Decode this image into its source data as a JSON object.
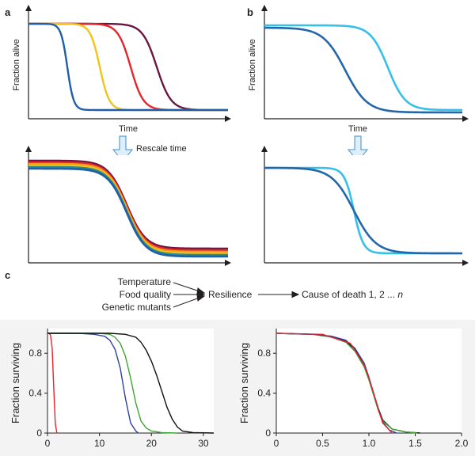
{
  "panels": {
    "a": {
      "letter": "a",
      "ylabel": "Fraction alive",
      "xlabel": "Time",
      "arrow_label": "Rescale time"
    },
    "b": {
      "letter": "b",
      "ylabel": "Fraction alive",
      "xlabel": "Time"
    },
    "c": {
      "letter": "c"
    }
  },
  "flow": {
    "inputs": [
      "Temperature",
      "Food quality",
      "Genetic mutants"
    ],
    "middle": "Resilience",
    "output_prefix": "Cause of death 1, 2 ... ",
    "output_var": "n"
  },
  "colors": {
    "darkblue": "#1f5ea8",
    "yellow": "#f2c318",
    "red": "#e3262d",
    "maroon": "#6b1541",
    "lightblue": "#35c0ea",
    "midblue": "#2466ab",
    "teal": "#2a8a8c",
    "orange": "#f39a1e",
    "arrow_fill": "#dfeefa",
    "arrow_stroke": "#3b8fd0"
  },
  "chart_data": [
    {
      "type": "line",
      "title": "",
      "xlabel": "",
      "ylabel": "Fraction surviving",
      "xlim": [
        0,
        32
      ],
      "ylim": [
        0,
        1.0
      ],
      "xticks": [
        0,
        10,
        20,
        30
      ],
      "yticks": [
        0,
        0.4,
        0.8
      ],
      "ytick_labels": [
        "0",
        "0.4",
        "0.8"
      ],
      "series": [
        {
          "name": "red",
          "color": "#e3262d",
          "x": [
            0,
            0.3,
            0.6,
            0.9,
            1.2,
            1.5,
            1.8
          ],
          "y": [
            1.0,
            1.0,
            0.98,
            0.85,
            0.45,
            0.1,
            0.0
          ]
        },
        {
          "name": "blue",
          "color": "#2e3f9e",
          "x": [
            0,
            6,
            9,
            11,
            12,
            13,
            14,
            15,
            16,
            17,
            17.5
          ],
          "y": [
            1.0,
            1.0,
            0.99,
            0.97,
            0.93,
            0.84,
            0.65,
            0.35,
            0.1,
            0.02,
            0.0
          ]
        },
        {
          "name": "green",
          "color": "#3fa535",
          "x": [
            0,
            10,
            12,
            13,
            14,
            15,
            16,
            17,
            18,
            19,
            20,
            22,
            25
          ],
          "y": [
            1.0,
            1.0,
            0.99,
            0.96,
            0.9,
            0.77,
            0.55,
            0.3,
            0.12,
            0.05,
            0.02,
            0.005,
            0.0
          ]
        },
        {
          "name": "black",
          "color": "#111111",
          "x": [
            0,
            12,
            15,
            17,
            18,
            19,
            20,
            21,
            22,
            23,
            24,
            25,
            26,
            28,
            32
          ],
          "y": [
            1.0,
            1.0,
            0.99,
            0.96,
            0.91,
            0.83,
            0.72,
            0.58,
            0.42,
            0.26,
            0.14,
            0.06,
            0.02,
            0.005,
            0.0
          ]
        }
      ]
    },
    {
      "type": "line",
      "title": "",
      "xlabel": "",
      "ylabel": "Fraction surviving",
      "xlim": [
        0,
        2.0
      ],
      "ylim": [
        0,
        1.0
      ],
      "xticks": [
        0,
        0.5,
        1.0,
        1.5,
        2.0
      ],
      "xtick_labels": [
        "0",
        "0.5",
        "1.0",
        "1.5",
        "2.0"
      ],
      "yticks": [
        0,
        0.4,
        0.8
      ],
      "ytick_labels": [
        "0",
        "0.4",
        "0.8"
      ],
      "series": [
        {
          "name": "black",
          "color": "#111111",
          "x": [
            0,
            0.4,
            0.6,
            0.75,
            0.85,
            0.95,
            1.0,
            1.05,
            1.1,
            1.15,
            1.25,
            1.4,
            1.55
          ],
          "y": [
            1.0,
            0.99,
            0.97,
            0.92,
            0.84,
            0.68,
            0.55,
            0.4,
            0.25,
            0.13,
            0.04,
            0.01,
            0.0
          ]
        },
        {
          "name": "green",
          "color": "#3fa535",
          "x": [
            0,
            0.4,
            0.6,
            0.75,
            0.85,
            0.95,
            1.0,
            1.05,
            1.1,
            1.15,
            1.25,
            1.4,
            1.52
          ],
          "y": [
            1.0,
            0.99,
            0.96,
            0.91,
            0.82,
            0.66,
            0.53,
            0.38,
            0.23,
            0.12,
            0.04,
            0.01,
            0.0
          ]
        },
        {
          "name": "blue",
          "color": "#2e3f9e",
          "x": [
            0,
            0.4,
            0.6,
            0.75,
            0.85,
            0.95,
            1.0,
            1.05,
            1.1,
            1.15,
            1.22,
            1.3
          ],
          "y": [
            1.0,
            0.99,
            0.97,
            0.93,
            0.85,
            0.7,
            0.56,
            0.4,
            0.24,
            0.11,
            0.03,
            0.0
          ]
        },
        {
          "name": "red",
          "color": "#e3262d",
          "x": [
            0,
            0.5,
            0.8,
            0.95,
            1.0,
            1.05,
            1.1,
            1.15,
            1.25
          ],
          "y": [
            1.0,
            0.99,
            0.9,
            0.68,
            0.55,
            0.4,
            0.24,
            0.1,
            0.0
          ]
        }
      ]
    }
  ]
}
